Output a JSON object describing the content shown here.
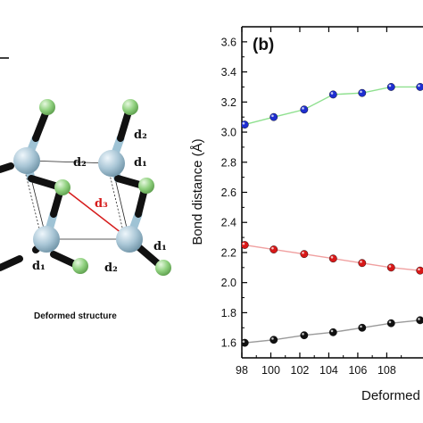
{
  "figure": {
    "panel_letter": "(b)",
    "structure_caption": "Deformed structure",
    "structure_labels": {
      "d1_right": "d₁",
      "d1_bottom_left": "d₁",
      "d1_bottom_right": "d₁",
      "d2_top": "d₂",
      "d2_middle": "d₂",
      "d2_bottom": "d₂",
      "d3": "d₃"
    }
  },
  "colors": {
    "atom_large": "#a9c6d6",
    "atom_small": "#8fd07e",
    "bond_dark": "#111111",
    "bond_light": "#9fc3d5",
    "d3_line": "#d61c1c",
    "series_blue": "#1f2fd0",
    "series_red": "#d81818",
    "series_black": "#111111",
    "line_blue": "#8fe08f",
    "line_red": "#f0a0a0",
    "line_black": "#9a9a9a"
  },
  "chart_data": {
    "type": "scatter",
    "xlabel": "Deformed",
    "ylabel": "Bond distance (Å)",
    "xlim": [
      98,
      110.5
    ],
    "ylim": [
      1.5,
      3.7
    ],
    "xticks": [
      "98",
      "100",
      "102",
      "104",
      "106",
      "108"
    ],
    "yticks": [
      "1.6",
      "1.8",
      "2.0",
      "2.2",
      "2.4",
      "2.6",
      "2.8",
      "3.0",
      "3.2",
      "3.4",
      "3.6"
    ],
    "series": [
      {
        "color": "#1f2fd0",
        "line_color": "#8fe08f",
        "x": [
          98.2,
          100.2,
          102.3,
          104.3,
          106.3,
          108.3,
          110.3
        ],
        "y": [
          3.05,
          3.1,
          3.15,
          3.25,
          3.26,
          3.3,
          3.3
        ]
      },
      {
        "color": "#d81818",
        "line_color": "#f0a0a0",
        "x": [
          98.2,
          100.2,
          102.3,
          104.3,
          106.3,
          108.3,
          110.3
        ],
        "y": [
          2.25,
          2.22,
          2.19,
          2.16,
          2.13,
          2.1,
          2.08
        ]
      },
      {
        "color": "#111111",
        "line_color": "#9a9a9a",
        "x": [
          98.2,
          100.2,
          102.3,
          104.3,
          106.3,
          108.3,
          110.3
        ],
        "y": [
          1.6,
          1.62,
          1.65,
          1.67,
          1.7,
          1.73,
          1.75
        ]
      }
    ]
  }
}
